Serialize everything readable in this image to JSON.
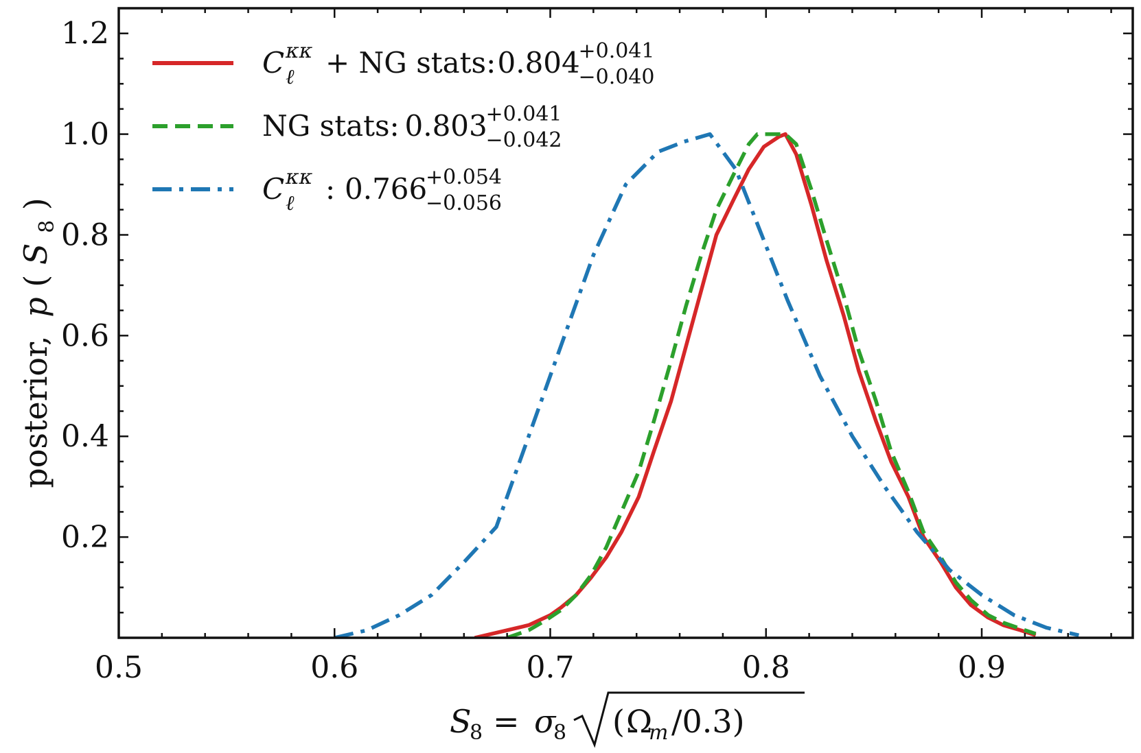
{
  "chart_data": {
    "type": "line",
    "title": "",
    "xlabel": {
      "lhs": "S",
      "lhs_sub": "8",
      "eq": "=",
      "sigma": "σ",
      "sigma_sub": "8",
      "radicand_open": "(",
      "omega": "Ω",
      "omega_sub": "m",
      "radicand_close": "/0.3)"
    },
    "ylabel": {
      "prefix": "posterior,",
      "func": "p",
      "open": "(",
      "var": "S",
      "var_sub": "8",
      "close": ")"
    },
    "xlim": [
      0.5,
      0.97
    ],
    "ylim": [
      0.0,
      1.25
    ],
    "xticks": [
      0.5,
      0.6,
      0.7,
      0.8,
      0.9
    ],
    "xtick_labels": [
      "0.5",
      "0.6",
      "0.7",
      "0.8",
      "0.9"
    ],
    "yticks": [
      0.2,
      0.4,
      0.6,
      0.8,
      1.0,
      1.2
    ],
    "ytick_labels": [
      "0.2",
      "0.4",
      "0.6",
      "0.8",
      "1.0",
      "1.2"
    ],
    "x_minor_step": 0.02,
    "y_minor_step": 0.05,
    "grid": false,
    "legend_position": "top-left",
    "series": [
      {
        "name": "combined",
        "color": "#d62728",
        "dash": "solid",
        "legend": {
          "main": "C",
          "sub": "ℓ",
          "sup": "κκ",
          "text": "+ NG stats:",
          "value": "0.804",
          "plus": "+0.041",
          "minus": "−0.040"
        },
        "x": [
          0.665,
          0.675,
          0.685,
          0.69,
          0.7,
          0.705,
          0.712,
          0.719,
          0.726,
          0.733,
          0.741,
          0.748,
          0.756,
          0.763,
          0.77,
          0.777,
          0.785,
          0.792,
          0.799,
          0.806,
          0.809,
          0.814,
          0.821,
          0.828,
          0.836,
          0.843,
          0.851,
          0.858,
          0.866,
          0.873,
          0.881,
          0.888,
          0.895,
          0.903,
          0.91,
          0.918,
          0.925
        ],
        "y": [
          0.0,
          0.01,
          0.02,
          0.025,
          0.045,
          0.06,
          0.085,
          0.12,
          0.16,
          0.21,
          0.28,
          0.37,
          0.47,
          0.58,
          0.69,
          0.8,
          0.87,
          0.93,
          0.975,
          0.995,
          1.0,
          0.96,
          0.86,
          0.75,
          0.64,
          0.53,
          0.43,
          0.35,
          0.28,
          0.2,
          0.15,
          0.1,
          0.065,
          0.04,
          0.025,
          0.015,
          0.005
        ]
      },
      {
        "name": "ng_stats",
        "color": "#2ca02c",
        "dash": "dashed",
        "legend": {
          "main": "",
          "sub": "",
          "sup": "",
          "text": "NG stats:",
          "value": "0.803",
          "plus": "+0.041",
          "minus": "−0.042"
        },
        "x": [
          0.68,
          0.69,
          0.698,
          0.705,
          0.712,
          0.719,
          0.726,
          0.733,
          0.741,
          0.748,
          0.756,
          0.763,
          0.77,
          0.777,
          0.785,
          0.792,
          0.796,
          0.802,
          0.809,
          0.814,
          0.821,
          0.828,
          0.836,
          0.843,
          0.851,
          0.858,
          0.866,
          0.873,
          0.881,
          0.888,
          0.895,
          0.903,
          0.91,
          0.918,
          0.925
        ],
        "y": [
          0.0,
          0.015,
          0.035,
          0.055,
          0.085,
          0.125,
          0.18,
          0.25,
          0.33,
          0.43,
          0.55,
          0.66,
          0.76,
          0.85,
          0.92,
          0.98,
          1.0,
          1.0,
          1.0,
          0.98,
          0.89,
          0.79,
          0.68,
          0.57,
          0.47,
          0.37,
          0.29,
          0.21,
          0.16,
          0.11,
          0.075,
          0.045,
          0.03,
          0.018,
          0.008
        ]
      },
      {
        "name": "power_spectrum",
        "color": "#1f77b4",
        "dash": "dashdot",
        "legend": {
          "main": "C",
          "sub": "ℓ",
          "sup": "κκ",
          "text": ":",
          "value": "0.766",
          "plus": "+0.054",
          "minus": "−0.056"
        },
        "x": [
          0.6,
          0.615,
          0.63,
          0.645,
          0.66,
          0.675,
          0.69,
          0.705,
          0.72,
          0.735,
          0.75,
          0.762,
          0.774,
          0.786,
          0.798,
          0.81,
          0.825,
          0.84,
          0.855,
          0.87,
          0.885,
          0.9,
          0.915,
          0.93,
          0.945
        ],
        "y": [
          0.0,
          0.015,
          0.045,
          0.085,
          0.15,
          0.22,
          0.4,
          0.58,
          0.76,
          0.9,
          0.965,
          0.985,
          1.0,
          0.93,
          0.8,
          0.67,
          0.52,
          0.4,
          0.3,
          0.21,
          0.135,
          0.085,
          0.045,
          0.02,
          0.005
        ]
      }
    ]
  }
}
